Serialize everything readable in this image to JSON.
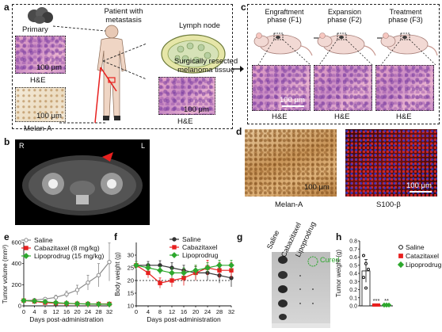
{
  "panels": {
    "a": "a",
    "b": "b",
    "c": "c",
    "d": "d",
    "e": "e",
    "f": "f",
    "g": "g",
    "h": "h"
  },
  "panel_a": {
    "primary": "Primary",
    "patient": "Patient with\nmetastasis",
    "lymph_node": "Lymph node",
    "he_1": "H&E",
    "he_2": "H&E",
    "melan_a": "Melan-A",
    "scale_1": "100 μm",
    "scale_2": "100 μm",
    "scale_3": "100 μm"
  },
  "arrow_text": "Surgically resected\nmelanoma tissue",
  "panel_b": {
    "left": "R",
    "right": "L"
  },
  "panel_c": {
    "phases": [
      "Engraftment\nphase (F1)",
      "Expansion\nphase (F2)",
      "Treatment\nphase (F3)"
    ],
    "he_labels": [
      "H&E",
      "H&E",
      "H&E"
    ],
    "scale": "100 μm"
  },
  "panel_d": {
    "labels": [
      "Melan-A",
      "S100-β"
    ],
    "scale_1": "100 μm",
    "scale_2": "100 μm"
  },
  "panel_g": {
    "labels": [
      "Saline",
      "Cabazitaxel",
      "Lipoprodrug"
    ],
    "cured": "Cured"
  },
  "colors": {
    "saline": "#8a8a8a",
    "cabazitaxel": "#e8201f",
    "lipoprodrug": "#2ea82e",
    "dark": "#333333"
  },
  "chart_data": [
    {
      "id": "e",
      "type": "line",
      "xlabel": "Days post-administration",
      "ylabel": "Tumor volume (mm³)",
      "xlim": [
        0,
        32
      ],
      "ylim": [
        0,
        600
      ],
      "xticks": [
        0,
        4,
        8,
        12,
        16,
        20,
        24,
        28,
        32
      ],
      "yticks": [
        0,
        200,
        400,
        600
      ],
      "series": [
        {
          "name": "Saline",
          "color": "#8a8a8a",
          "marker": "circle",
          "x": [
            0,
            4,
            8,
            12,
            16,
            20,
            24,
            28,
            32
          ],
          "y": [
            50,
            55,
            65,
            80,
            110,
            150,
            220,
            290,
            415
          ],
          "err": [
            8,
            10,
            12,
            20,
            30,
            45,
            70,
            110,
            180
          ]
        },
        {
          "name": "Cabazitaxel (8 mg/kg)",
          "color": "#e8201f",
          "marker": "square",
          "x": [
            0,
            4,
            8,
            12,
            16,
            20,
            24,
            28,
            32
          ],
          "y": [
            50,
            42,
            30,
            25,
            22,
            20,
            18,
            18,
            18
          ],
          "err": [
            6,
            6,
            5,
            5,
            4,
            4,
            4,
            4,
            4
          ]
        },
        {
          "name": "Lipoprodrug (15 mg/kg)",
          "color": "#2ea82e",
          "marker": "diamond",
          "x": [
            0,
            4,
            8,
            12,
            16,
            20,
            24,
            28,
            32
          ],
          "y": [
            50,
            45,
            38,
            30,
            25,
            20,
            18,
            16,
            15
          ],
          "err": [
            6,
            6,
            5,
            5,
            4,
            4,
            4,
            4,
            4
          ]
        }
      ]
    },
    {
      "id": "f",
      "type": "line",
      "xlabel": "Days post-administration",
      "ylabel": "Body weight (g)",
      "xlim": [
        0,
        32
      ],
      "ylim": [
        10,
        35
      ],
      "xticks": [
        0,
        4,
        8,
        12,
        16,
        20,
        24,
        28,
        32
      ],
      "yticks": [
        10,
        15,
        20,
        25,
        30
      ],
      "dashed_y": 20,
      "series": [
        {
          "name": "Saline",
          "color": "#333333",
          "marker": "circle",
          "x": [
            0,
            4,
            8,
            12,
            16,
            20,
            24,
            28,
            32
          ],
          "y": [
            26,
            26,
            26,
            25,
            24,
            23,
            23,
            22,
            21
          ],
          "err": [
            1.5,
            1.5,
            1.8,
            2,
            2,
            2.5,
            3,
            3,
            3.5
          ]
        },
        {
          "name": "Cabazitaxel",
          "color": "#e8201f",
          "marker": "square",
          "x": [
            0,
            4,
            8,
            12,
            16,
            20,
            24,
            28,
            32
          ],
          "y": [
            26,
            23,
            19,
            20,
            21,
            23,
            25,
            24,
            24
          ],
          "err": [
            1.5,
            2,
            2,
            2.5,
            3,
            3,
            3,
            3,
            3
          ]
        },
        {
          "name": "Lipoprodrug",
          "color": "#2ea82e",
          "marker": "diamond",
          "x": [
            0,
            4,
            8,
            12,
            16,
            20,
            24,
            28,
            32
          ],
          "y": [
            26,
            25,
            24,
            23,
            23,
            24,
            25,
            26,
            26
          ],
          "err": [
            1.5,
            1.5,
            1.5,
            2,
            2,
            2,
            2,
            2,
            2
          ]
        }
      ]
    },
    {
      "id": "h",
      "type": "bar",
      "ylabel": "Tumor weight (g)",
      "ylim": [
        0,
        0.8
      ],
      "yticks": [
        0.0,
        0.1,
        0.2,
        0.3,
        0.4,
        0.5,
        0.6,
        0.7,
        0.8
      ],
      "ytick_labels": [
        "0.0",
        "0.1",
        "0.2",
        "0.3",
        "0.4",
        "0.5",
        "0.6",
        "0.7",
        "0.8"
      ],
      "series": [
        {
          "name": "Saline",
          "color": "#ffffff",
          "marker": "circle",
          "value": 0.43,
          "err": 0.14,
          "points": [
            0.62,
            0.52,
            0.45,
            0.35,
            0.22
          ],
          "sig": ""
        },
        {
          "name": "Catazitaxel",
          "color": "#e8201f",
          "marker": "square",
          "value": 0.01,
          "err": 0.005,
          "points": [
            0.01,
            0.01,
            0.01,
            0.01,
            0.01
          ],
          "sig": "***"
        },
        {
          "name": "Lipoprodrug",
          "color": "#2ea82e",
          "marker": "diamond",
          "value": 0.01,
          "err": 0.005,
          "points": [
            0.01,
            0.01,
            0.01,
            0.01,
            0.01
          ],
          "sig": "**"
        }
      ]
    }
  ]
}
